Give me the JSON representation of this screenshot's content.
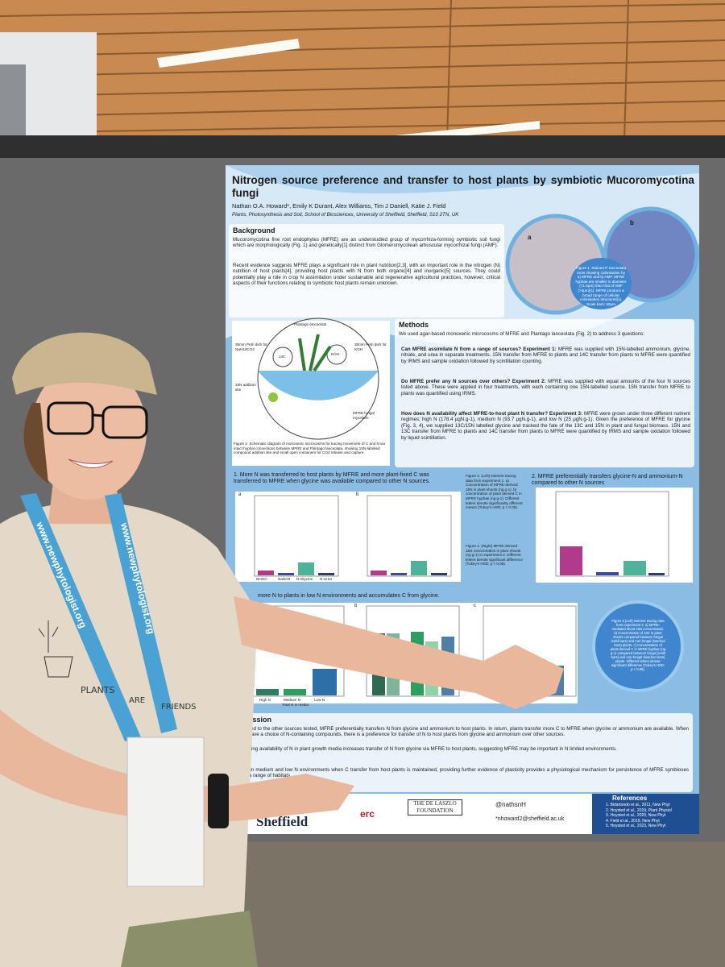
{
  "poster": {
    "title": "Nitrogen source preference and transfer to host plants by symbiotic Mucoromycotina fungi",
    "authors": "Nathan O.A. Howard*, Emily K Durant, Alex Williams, Tim J Daniell, Katie J. Field",
    "affiliation": "Plants, Photosynthesis and Soil, School of Biosciences, University of Sheffield, Sheffield, S10 2TN, UK",
    "background": {
      "heading": "Background",
      "paragraphs": [
        "Mucoromycotina fine root endophytes (MFRE) are an understudied group of mycorrhiza-forming symbiotic soil fungi which are morphologically (Fig. 1) and genetically[1] distinct from Glomeromycotean arbuscular mycorrhizal fungi (AMF).",
        "Recent evidence suggests MFRE plays a significant role in plant nutrition[2,3], with an important role in the nitrogen (N) nutrition of host plants[4], providing host plants with N from both organic[4] and inorganic[5] sources. They could potentially play a role in crop N assimilation under sustainable and regenerative agricultural practices, however, critical aspects of their functions relating to symbiotic host plants remain unknown."
      ]
    },
    "figure1": {
      "panels": [
        "a",
        "b"
      ],
      "caption": "Figure 1. Stained P. lanceolata roots showing colonisation by a) MFRE and b) AMF. MFRE hyphae are smaller in diameter (<1.5μm) than that of AMF (>3μm)[1]. MFRE produce a broad range of cellular colonisation structures[1]. Scale bars: 50μm"
    },
    "figure2": {
      "labels": [
        "Plantago lanceolata",
        "35mm Petri dish for NaH14CO3",
        "14C",
        "KOH",
        "35mm Petri dish for KOH",
        "15N addition site",
        "MFRE fungal mycelium"
      ],
      "caption": "Figure 2. Schematic diagram of monoxenic microcosms for tracing movement of C and N via intact hyphal connections between MFRE and Plantago lanceolata, showing 15N-labelled compound addition site and small open containers for CO2 release and capture."
    },
    "methods": {
      "heading": "Methods",
      "intro": "We used agar-based monoxenic microcosms of MFRE and Plantago lanceolata (Fig. 2) to address 3 questions:",
      "questions": [
        {
          "question": "Can MFRE assimilate N from a range of sources? Experiment 1:",
          "text": "MFRE was supplied with 15N-labelled ammonium, glycine, nitrate, and urea in separate treatments. 15N transfer from MFRE to plants and 14C transfer from plants to MFRE were quantified by IRMS and sample oxidation followed by scintillation counting."
        },
        {
          "question": "Do MFRE prefer any N sources over others? Experiment 2:",
          "text": "MFRE was supplied with equal amounts of the four N sources listed above. These were applied in four treatments, with each containing one 15N-labelled source. 15N transfer from MFRE to plants was quantified using IRMS."
        },
        {
          "question": "How does N availability affect MFRE-to-host plant N transfer? Experiment 3:",
          "text": "MFRE were grown under three different nutrient regimes; high N (178.4 μgN.g-1), medium N (93.7 μgN.g-1), and low N (25 μgN.g-1). Given the preference of MFRE for glycine (Fig. 3, 4), we supplied 13C/15N labelled glycine and tracked the fate of the 13C and 15N in plant and fungal biomass. 15N and 13C transfer from MFRE to plants and 14C transfer from plants to MFRE were quantified by IRMS and sample oxidation followed by liquid scintillation."
        }
      ]
    },
    "results": [
      {
        "heading": "1. More N was transferred to host plants by MFRE and more plant-fixed C was transferred to MFRE when glycine was available compared to other N sources.",
        "panels": [
          "a",
          "b"
        ]
      },
      {
        "heading": "2. MFRE preferentially transfers glycine-N and ammonium-N compared to other N sources"
      },
      {
        "heading": "more N to plants in low N environments and accumulates C from glycine.",
        "panels": [
          "a",
          "b",
          "c"
        ]
      }
    ],
    "n_sources": [
      "NH4Cl",
      "NaNO3",
      "N-Glycine",
      "N-Urea"
    ],
    "n_levels": [
      "High N",
      "Medium N",
      "Low N"
    ],
    "n_axis": "Total N in media",
    "figure3": "Figure 3. (Left) Nutrient tracing data from experiment 1. a) Concentration of MFRE-derived 15N in plant shoots (ng g-1). b) concentration of plant derived C in MFRE hyphae (ng g-1). Different letters denote significantly different means (Tukey's HSD; p < 0.05).",
    "figure4": "Figure 4. (Right) MFRE-derived 15N concentration in plant shoots (ng g-1) in experiment 2. Different letters denote significant difference (Tukey's HSD; p < 0.05).",
    "figure5": "Figure 5 (Left) Nutrient tracing data from experiment 3. a) MFRE-mediated shoot 15N concentration. b) Concentration of 13C in plant shoots compared between fungal (solid bars) and non-fungal (hatched bars) plants. c) Concentration of plant-derived C in MFRE hyphae (ng g-1) compared between fungal (solid bars) and non-fungal (hatched bars) plants. Different letters denote significant difference (Tukey's HSD; p < 0.05).",
    "discussion": {
      "heading": "Discussion",
      "paragraphs": [
        "Compared to the other sources tested, MFRE preferentially transfers N from glycine and ammonium to host plants. In return, plants transfer more C to MFRE when glycine or ammonium are available. When MFRE have a choice of N-containing compounds, there is a preference for transfer of N to host plants from glycine and ammonium over other sources.",
        "Decreasing availability of N in plant growth media increases transfer of N from glycine via MFRE to host plants, suggesting MFRE may be important in N limited environments.",
        "glycine in medium and low N environments when C transfer from host plants is maintained, providing further evidence of plasticity provides a physiological mechanism for persistence of MFRE symbioses across a range of habitats."
      ]
    },
    "logos": [
      "Sheffield",
      "erc",
      "THE DE LASZLO FOUNDATION"
    ],
    "contacts": [
      "@nathsnH",
      "*nhoward2@sheffield.ac.uk"
    ],
    "references": {
      "heading": "References",
      "items": [
        "1. Bidartondo et al., 2011, New Phyt",
        "2. Hoysted et al., 2019, Plant Physiol",
        "3. Hoysted et al., 2020, New Phyt",
        "4. Field et al., 2019, New Phyt",
        "5. Hoysted et al., 2023, New Phyt"
      ]
    }
  },
  "lanyard": "www.newphytologist.org",
  "shirt": [
    "PLANTS",
    "ARE",
    "FRIENDS"
  ]
}
